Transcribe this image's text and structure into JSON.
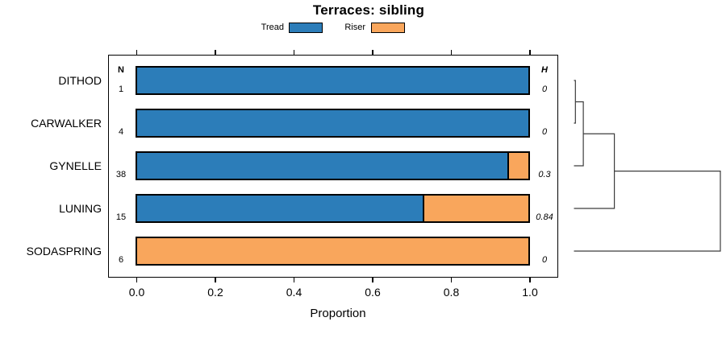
{
  "title": "Terraces: sibling",
  "legend": {
    "items": [
      {
        "label": "Tread",
        "color": "#2C7DB9"
      },
      {
        "label": "Riser",
        "color": "#F9A65C"
      }
    ]
  },
  "columns": {
    "n_header": "N",
    "h_header": "H"
  },
  "rows": [
    {
      "label": "DITHOD",
      "n": "1",
      "h": "0",
      "tread": 1.0,
      "riser": 0.0
    },
    {
      "label": "CARWALKER",
      "n": "4",
      "h": "0",
      "tread": 1.0,
      "riser": 0.0
    },
    {
      "label": "GYNELLE",
      "n": "38",
      "h": "0.3",
      "tread": 0.947,
      "riser": 0.053
    },
    {
      "label": "LUNING",
      "n": "15",
      "h": "0.84",
      "tread": 0.733,
      "riser": 0.267
    },
    {
      "label": "SODASPRING",
      "n": "6",
      "h": "0",
      "tread": 0.0,
      "riser": 1.0
    }
  ],
  "axis": {
    "xlabel": "Proportion",
    "ticks": [
      {
        "label": "0.0",
        "value": 0.0
      },
      {
        "label": "0.2",
        "value": 0.2
      },
      {
        "label": "0.4",
        "value": 0.4
      },
      {
        "label": "0.6",
        "value": 0.6
      },
      {
        "label": "0.8",
        "value": 0.8
      },
      {
        "label": "1.0",
        "value": 1.0
      }
    ]
  },
  "dendrogram": {
    "line_color": "#3c3c3c",
    "merges": [
      {
        "children": [
          "leaf0",
          "leaf1"
        ],
        "height": 0.01
      },
      {
        "children": [
          "m0",
          "leaf2"
        ],
        "height": 0.064
      },
      {
        "children": [
          "m1",
          "leaf3"
        ],
        "height": 0.276
      },
      {
        "children": [
          "m2",
          "leaf4"
        ],
        "height": 1.0
      }
    ]
  },
  "chart_data": {
    "type": "bar",
    "orientation": "horizontal",
    "stacked": true,
    "title": "Terraces: sibling",
    "xlabel": "Proportion",
    "ylabel": "",
    "xlim": [
      0,
      1
    ],
    "x_ticks": [
      0.0,
      0.2,
      0.4,
      0.6,
      0.8,
      1.0
    ],
    "grid": false,
    "legend_position": "top",
    "categories": [
      "DITHOD",
      "CARWALKER",
      "GYNELLE",
      "LUNING",
      "SODASPRING"
    ],
    "series": [
      {
        "name": "Tread",
        "color": "#2C7DB9",
        "values": [
          1.0,
          1.0,
          0.95,
          0.73,
          0.0
        ]
      },
      {
        "name": "Riser",
        "color": "#F9A65C",
        "values": [
          0.0,
          0.0,
          0.05,
          0.27,
          1.0
        ]
      }
    ],
    "n_column": {
      "header": "N",
      "values": [
        1,
        4,
        38,
        15,
        6
      ]
    },
    "h_column": {
      "header": "H",
      "values": [
        0,
        0,
        0.3,
        0.84,
        0
      ]
    },
    "right_panel": "dendrogram",
    "dendrogram_merges": [
      [
        "DITHOD",
        "CARWALKER",
        0.01
      ],
      [
        "(DITHOD,CARWALKER)",
        "GYNELLE",
        0.06
      ],
      [
        "(DITHOD,CARWALKER)+GYNELLE",
        "LUNING",
        0.28
      ],
      [
        "(DITHOD,CARWALKER,GYNELLE,LUNING)",
        "SODASPRING",
        1.0
      ]
    ]
  }
}
